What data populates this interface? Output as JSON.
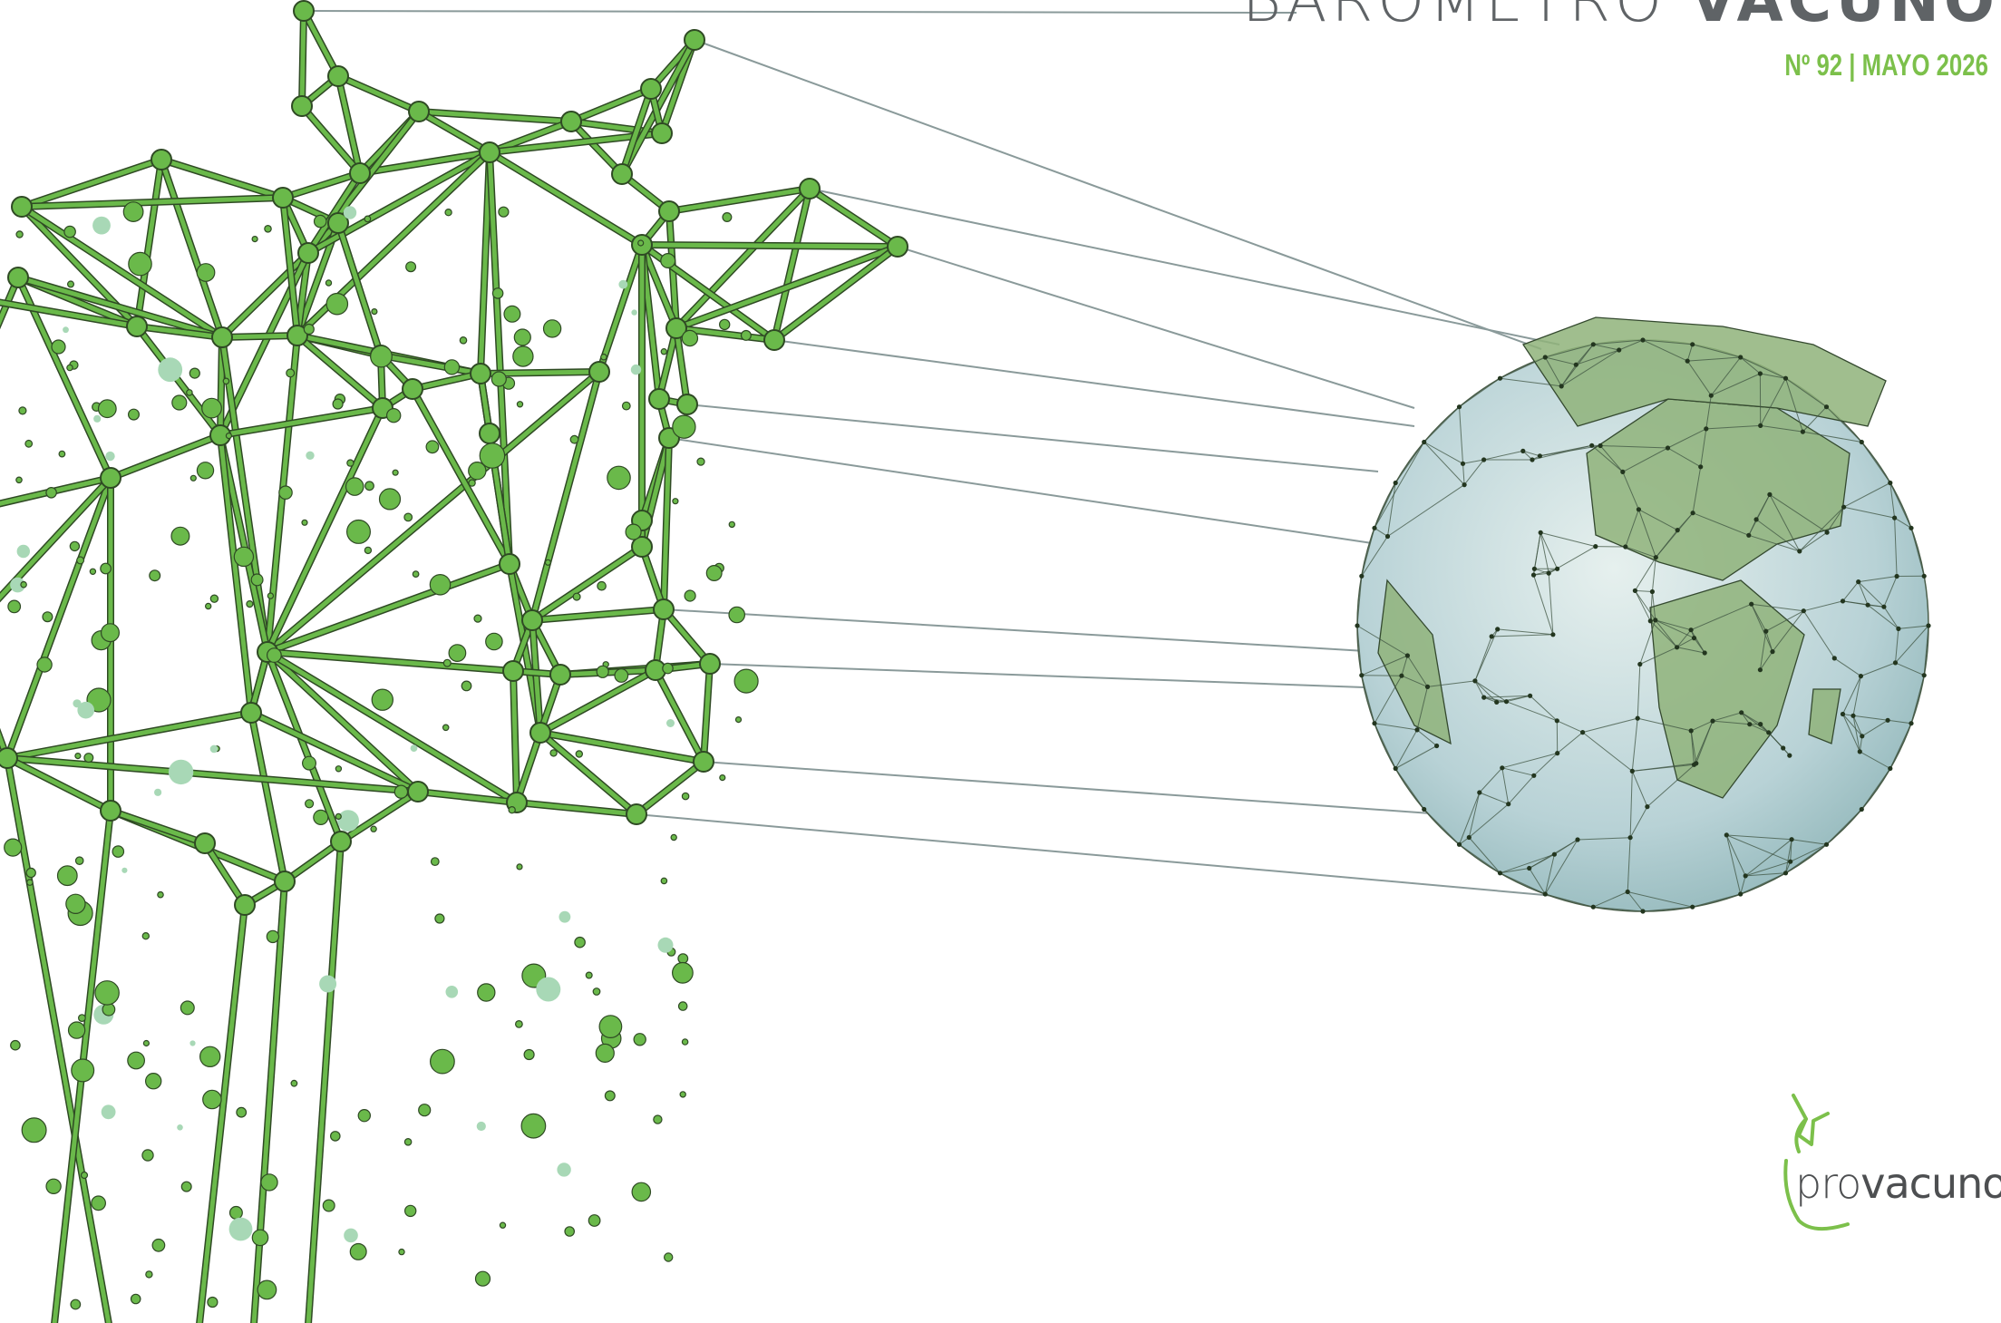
{
  "header": {
    "title_light": "BARÓMETRO",
    "title_bold": "VACUNO",
    "issue": "Nº 92 | MAYO 2026"
  },
  "brand": {
    "prefix": "pro",
    "suffix": "vacuno",
    "logo_icon": "cow-head-outline-icon"
  },
  "illustration": {
    "left": "low-poly-cow-head-network",
    "right": "low-poly-globe-icon"
  },
  "colors": {
    "accent_green": "#7cc04b",
    "network_green": "#6ab94a",
    "network_outline": "#2f4a24",
    "title_gray": "#5f6366",
    "connector_gray": "#8a9a9a",
    "globe_sea": "#b8d2d6",
    "globe_land": "#8fb37a"
  }
}
